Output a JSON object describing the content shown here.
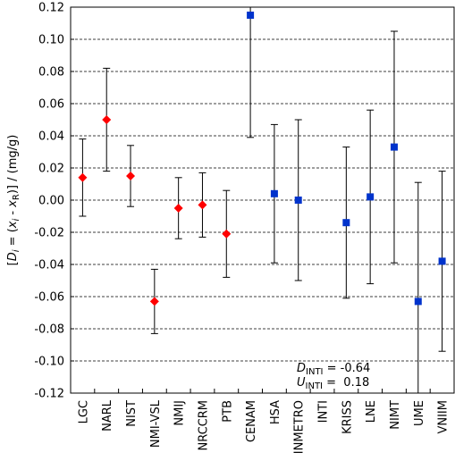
{
  "chart_data": {
    "type": "scatter",
    "ylim": [
      -0.12,
      0.12
    ],
    "yticks": [
      "0.12",
      "0.10",
      "0.08",
      "0.06",
      "0.04",
      "0.02",
      "0.00",
      "-0.02",
      "-0.04",
      "-0.06",
      "-0.08",
      "-0.10",
      "-0.12"
    ],
    "grid": "horizontal dashed",
    "categories": [
      "LGC",
      "NARL",
      "NIST",
      "NMI-VSL",
      "NMIJ",
      "NRCCRM",
      "PTB",
      "CENAM",
      "HSA",
      "INMETRO",
      "INTI",
      "KRISS",
      "LNE",
      "NIMT",
      "UME",
      "VNIIM"
    ],
    "series": [
      {
        "marker": "diamond",
        "color": "#ff0000",
        "points": [
          {
            "x": "LGC",
            "y": 0.014,
            "low": -0.01,
            "high": 0.038
          },
          {
            "x": "NARL",
            "y": 0.05,
            "low": 0.018,
            "high": 0.082
          },
          {
            "x": "NIST",
            "y": 0.015,
            "low": -0.004,
            "high": 0.034
          },
          {
            "x": "NMI-VSL",
            "y": -0.063,
            "low": -0.083,
            "high": -0.043
          },
          {
            "x": "NMIJ",
            "y": -0.005,
            "low": -0.024,
            "high": 0.014
          },
          {
            "x": "NRCCRM",
            "y": -0.003,
            "low": -0.023,
            "high": 0.017
          },
          {
            "x": "PTB",
            "y": -0.021,
            "low": -0.048,
            "high": 0.006
          }
        ]
      },
      {
        "marker": "square",
        "color": "#0033cc",
        "points": [
          {
            "x": "CENAM",
            "y": 0.115,
            "low": 0.039,
            "high": 0.12
          },
          {
            "x": "HSA",
            "y": 0.004,
            "low": -0.039,
            "high": 0.047
          },
          {
            "x": "INMETRO",
            "y": 0.0,
            "low": -0.05,
            "high": 0.05
          },
          {
            "x": "KRISS",
            "y": -0.014,
            "low": -0.061,
            "high": 0.033
          },
          {
            "x": "LNE",
            "y": 0.002,
            "low": -0.052,
            "high": 0.056
          },
          {
            "x": "NIMT",
            "y": 0.033,
            "low": -0.039,
            "high": 0.105
          },
          {
            "x": "UME",
            "y": -0.063,
            "low": -0.12,
            "high": 0.011
          },
          {
            "x": "VNIIM",
            "y": -0.038,
            "low": -0.094,
            "high": 0.018
          }
        ]
      }
    ],
    "ylabel": {
      "open": "[",
      "D": "D",
      "D_sub": "i",
      "eq": " = (",
      "x": "x",
      "x_sub": "i",
      "minus": " - ",
      "xR": "x",
      "xR_sub": "R",
      "close": ")]  / (mg/g)"
    },
    "annotations": {
      "d_label": "D",
      "d_sub": "INTI",
      "d_value": " = -0.64",
      "u_label": "U",
      "u_sub": "INTI",
      "u_value": " =  0.18"
    }
  }
}
